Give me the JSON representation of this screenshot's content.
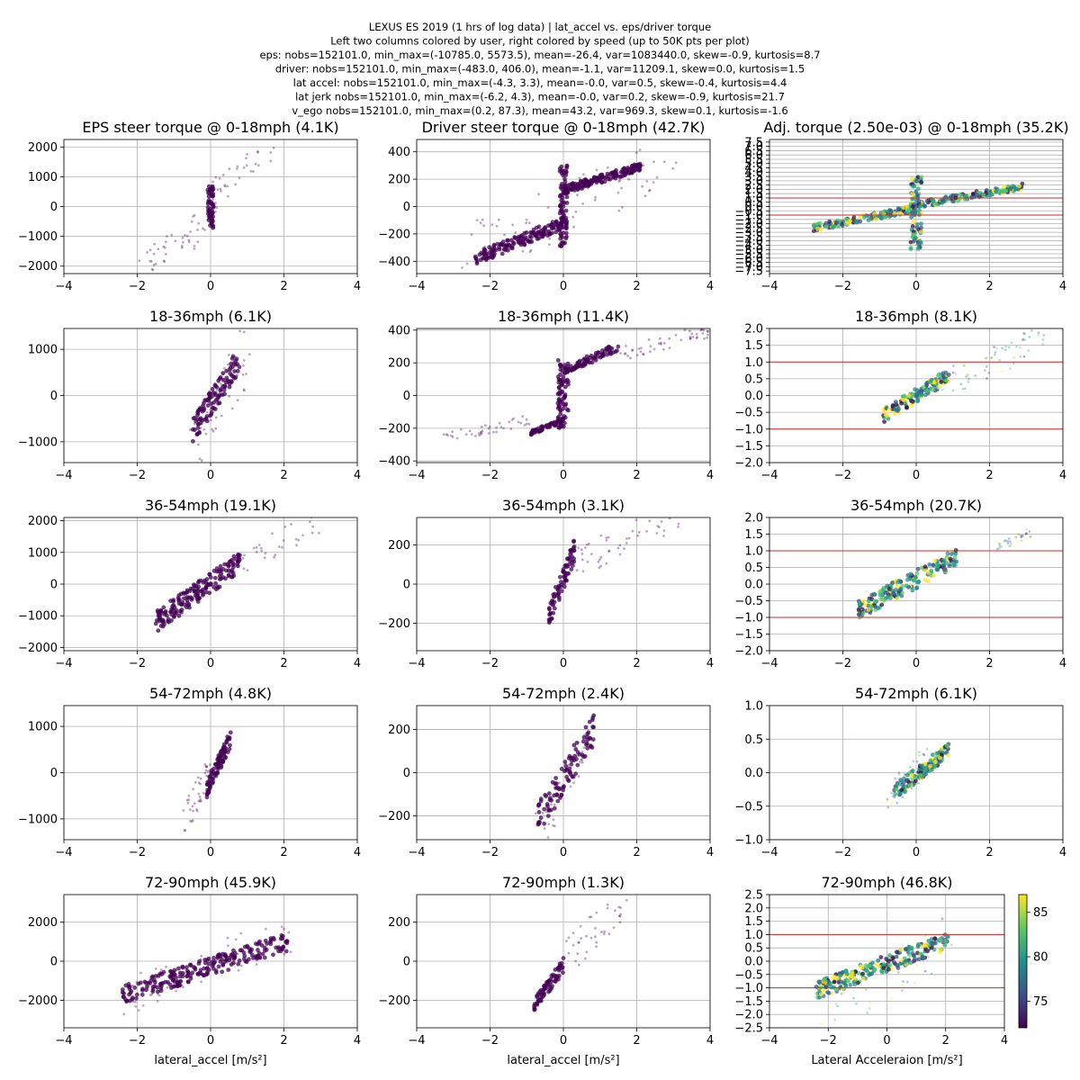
{
  "figure": {
    "suptitle_lines": [
      "LEXUS ES 2019 (1 hrs of log data) | lat_accel vs. eps/driver torque",
      "Left two columns colored by user, right colored by speed (up to 50K pts per plot)",
      "eps: nobs=152101.0, min_max=(-10785.0, 5573.5), mean=-26.4, var=1083440.0, skew=-0.9, kurtosis=8.7",
      "driver: nobs=152101.0, min_max=(-483.0, 406.0), mean=-1.1, var=11209.1, skew=0.0, kurtosis=1.5",
      "lat accel: nobs=152101.0, min_max=(-4.3, 3.3), mean=-0.0, var=0.5, skew=-0.4, kurtosis=4.4",
      "lat jerk nobs=152101.0, min_max=(-6.2, 4.3), mean=-0.0, var=0.2, skew=-0.9, kurtosis=21.7",
      "v_ego nobs=152101.0, min_max=(0.2, 87.3), mean=43.2, var=969.3, skew=0.1, kurtosis=-1.6"
    ],
    "colorbar": {
      "ticks": [
        75,
        80,
        85
      ],
      "range": [
        72,
        87
      ]
    },
    "colors": {
      "user": "#440154",
      "grid": "#b0b0b0",
      "limit_line": "#d62728"
    }
  },
  "chart_data": [
    {
      "type": "scatter",
      "title": "EPS steer torque @ 0-18mph (4.1K)",
      "xlim": [
        -4,
        4
      ],
      "ylim": [
        -2250,
        2250
      ],
      "xticks": [
        -4,
        -2,
        0,
        2,
        4
      ],
      "yticks": [
        -2000,
        -1000,
        0,
        1000,
        2000
      ],
      "clusters": [
        {
          "x": [
            -0.08,
            0.08
          ],
          "y": [
            -750,
            700
          ],
          "n": 60,
          "d": "dense"
        },
        {
          "x": [
            -2,
            0
          ],
          "y": [
            -2000,
            -400
          ],
          "n": 30,
          "d": "sparse"
        },
        {
          "x": [
            0,
            1.8
          ],
          "y": [
            400,
            2000
          ],
          "n": 30,
          "d": "sparse"
        },
        {
          "x": [
            -1,
            0.3
          ],
          "y": [
            -1700,
            300
          ],
          "n": 20,
          "d": "sparse"
        }
      ]
    },
    {
      "type": "scatter",
      "title": "Driver steer torque @ 0-18mph (42.7K)",
      "xlim": [
        -4,
        4
      ],
      "ylim": [
        -490,
        490
      ],
      "xticks": [
        -4,
        -2,
        0,
        2,
        4
      ],
      "yticks": [
        -400,
        -200,
        0,
        200,
        400
      ],
      "clusters": [
        {
          "x": [
            -2.4,
            0
          ],
          "y": [
            -380,
            -120
          ],
          "n": 160,
          "d": "dense"
        },
        {
          "x": [
            0,
            2.1
          ],
          "y": [
            120,
            290
          ],
          "n": 160,
          "d": "dense"
        },
        {
          "x": [
            -0.1,
            0.1
          ],
          "y": [
            -300,
            300
          ],
          "n": 80,
          "d": "dense"
        },
        {
          "x": [
            -2.8,
            3.2
          ],
          "y": [
            -350,
            350
          ],
          "n": 70,
          "d": "sparse"
        }
      ]
    },
    {
      "type": "scatter",
      "title": "Adj. torque (2.50e-03) @ 0-18mph (35.2K)",
      "xlim": [
        -4,
        4
      ],
      "ylim": [
        -7.8,
        7.8
      ],
      "xticks": [
        -4,
        -2,
        0,
        2,
        4
      ],
      "yticks": [
        -7.5,
        -7.0,
        -6.5,
        -6.0,
        -5.5,
        -5.0,
        -4.5,
        -4.0,
        -3.5,
        -3.0,
        -2.5,
        -2.0,
        -1.5,
        -1.0,
        -0.5,
        0.0,
        0.5,
        1.0,
        1.5,
        2.0,
        2.5,
        3.0,
        3.5,
        4.0,
        4.5,
        5.0,
        5.5,
        6.0,
        6.5,
        7.0,
        7.5
      ],
      "limit_lines": [
        -1,
        1
      ],
      "clusters": [
        {
          "x": [
            -2.8,
            0
          ],
          "y": [
            -2.5,
            -0.2
          ],
          "n": 150,
          "d": "dense"
        },
        {
          "x": [
            0,
            2.9
          ],
          "y": [
            0.2,
            2.3
          ],
          "n": 150,
          "d": "dense"
        },
        {
          "x": [
            -0.15,
            0.15
          ],
          "y": [
            -5,
            3.5
          ],
          "n": 80,
          "d": "dense"
        }
      ]
    },
    {
      "type": "scatter",
      "title": "18-36mph (6.1K)",
      "xlim": [
        -4,
        4
      ],
      "ylim": [
        -1450,
        1450
      ],
      "xticks": [
        -4,
        -2,
        0,
        2,
        4
      ],
      "yticks": [
        -1000,
        0,
        1000
      ],
      "clusters": [
        {
          "x": [
            -0.5,
            0.8
          ],
          "y": [
            -800,
            800
          ],
          "n": 110,
          "d": "dense"
        },
        {
          "x": [
            -0.6,
            1.1
          ],
          "y": [
            -1400,
            1100
          ],
          "n": 50,
          "d": "sparse"
        }
      ]
    },
    {
      "type": "scatter",
      "title": "18-36mph (11.4K)",
      "xlim": [
        -4,
        4
      ],
      "ylim": [
        -410,
        410
      ],
      "xticks": [
        -4,
        -2,
        0,
        2,
        4
      ],
      "yticks": [
        -400,
        -200,
        0,
        200,
        400
      ],
      "clusters": [
        {
          "x": [
            -0.9,
            0
          ],
          "y": [
            -230,
            -150
          ],
          "n": 60,
          "d": "dense"
        },
        {
          "x": [
            -0.15,
            0.15
          ],
          "y": [
            -200,
            220
          ],
          "n": 80,
          "d": "dense"
        },
        {
          "x": [
            0,
            1.5
          ],
          "y": [
            150,
            300
          ],
          "n": 80,
          "d": "dense"
        },
        {
          "x": [
            -3.3,
            -0.9
          ],
          "y": [
            -260,
            -150
          ],
          "n": 40,
          "d": "sparse"
        },
        {
          "x": [
            1.5,
            4
          ],
          "y": [
            250,
            400
          ],
          "n": 50,
          "d": "sparse"
        }
      ]
    },
    {
      "type": "scatter",
      "title": "18-36mph (8.1K)",
      "xlim": [
        -4,
        4
      ],
      "ylim": [
        -2,
        2
      ],
      "xticks": [
        -4,
        -2,
        0,
        2,
        4
      ],
      "yticks": [
        -2.0,
        -1.5,
        -1.0,
        -0.5,
        0.0,
        0.5,
        1.0,
        1.5,
        2.0
      ],
      "limit_lines": [
        -1,
        1
      ],
      "clusters": [
        {
          "x": [
            -0.9,
            0.9
          ],
          "y": [
            -0.6,
            0.6
          ],
          "n": 140,
          "d": "dense"
        },
        {
          "x": [
            0.5,
            3.5
          ],
          "y": [
            0.2,
            1.7
          ],
          "n": 60,
          "d": "sparse"
        }
      ]
    },
    {
      "type": "scatter",
      "title": "36-54mph (19.1K)",
      "xlim": [
        -4,
        4
      ],
      "ylim": [
        -2100,
        2100
      ],
      "xticks": [
        -4,
        -2,
        0,
        2,
        4
      ],
      "yticks": [
        -2000,
        -1000,
        0,
        1000,
        2000
      ],
      "clusters": [
        {
          "x": [
            -1.5,
            0.8
          ],
          "y": [
            -1200,
            700
          ],
          "n": 180,
          "d": "dense"
        },
        {
          "x": [
            0.6,
            3
          ],
          "y": [
            600,
            1950
          ],
          "n": 30,
          "d": "sparse"
        }
      ]
    },
    {
      "type": "scatter",
      "title": "36-54mph (3.1K)",
      "xlim": [
        -4,
        4
      ],
      "ylim": [
        -340,
        340
      ],
      "xticks": [
        -4,
        -2,
        0,
        2,
        4
      ],
      "yticks": [
        -200,
        0,
        200
      ],
      "clusters": [
        {
          "x": [
            -0.4,
            0.3
          ],
          "y": [
            -160,
            170
          ],
          "n": 80,
          "d": "dense"
        },
        {
          "x": [
            0.3,
            3.2
          ],
          "y": [
            100,
            370
          ],
          "n": 50,
          "d": "sparse"
        }
      ]
    },
    {
      "type": "scatter",
      "title": "36-54mph (20.7K)",
      "xlim": [
        -4,
        4
      ],
      "ylim": [
        -2,
        2
      ],
      "xticks": [
        -4,
        -2,
        0,
        2,
        4
      ],
      "yticks": [
        -2.0,
        -1.5,
        -1.0,
        -0.5,
        0.0,
        0.5,
        1.0,
        1.5,
        2.0
      ],
      "limit_lines": [
        -1,
        1
      ],
      "clusters": [
        {
          "x": [
            -1.6,
            1.1
          ],
          "y": [
            -0.8,
            0.8
          ],
          "n": 180,
          "d": "dense"
        },
        {
          "x": [
            2.2,
            3.2
          ],
          "y": [
            1.1,
            1.6
          ],
          "n": 30,
          "d": "sparse"
        }
      ]
    },
    {
      "type": "scatter",
      "title": "54-72mph (4.8K)",
      "xlim": [
        -4,
        4
      ],
      "ylim": [
        -1450,
        1450
      ],
      "xticks": [
        -4,
        -2,
        0,
        2,
        4
      ],
      "yticks": [
        -1000,
        0,
        1000
      ],
      "clusters": [
        {
          "x": [
            -0.1,
            0.55
          ],
          "y": [
            -350,
            750
          ],
          "n": 90,
          "d": "dense"
        },
        {
          "x": [
            -0.75,
            0
          ],
          "y": [
            -1100,
            100
          ],
          "n": 40,
          "d": "sparse"
        }
      ]
    },
    {
      "type": "scatter",
      "title": "54-72mph (2.4K)",
      "xlim": [
        -4,
        4
      ],
      "ylim": [
        -310,
        310
      ],
      "xticks": [
        -4,
        -2,
        0,
        2,
        4
      ],
      "yticks": [
        -200,
        0,
        200
      ],
      "clusters": [
        {
          "x": [
            -0.7,
            0.85
          ],
          "y": [
            -220,
            210
          ],
          "n": 100,
          "d": "dense"
        },
        {
          "x": [
            -0.8,
            0.6
          ],
          "y": [
            -300,
            100
          ],
          "n": 30,
          "d": "sparse"
        }
      ]
    },
    {
      "type": "scatter",
      "title": "54-72mph (6.1K)",
      "xlim": [
        -4,
        4
      ],
      "ylim": [
        -1,
        1
      ],
      "xticks": [
        -4,
        -2,
        0,
        2,
        4
      ],
      "yticks": [
        -1.0,
        -0.5,
        0.0,
        0.5,
        1.0
      ],
      "clusters": [
        {
          "x": [
            -0.6,
            0.9
          ],
          "y": [
            -0.3,
            0.35
          ],
          "n": 140,
          "d": "dense"
        },
        {
          "x": [
            -0.8,
            0.7
          ],
          "y": [
            -0.4,
            0.4
          ],
          "n": 40,
          "d": "sparse"
        }
      ]
    },
    {
      "type": "scatter",
      "title": "72-90mph (45.9K)",
      "xlim": [
        -4,
        4
      ],
      "ylim": [
        -3400,
        3400
      ],
      "xticks": [
        -4,
        -2,
        0,
        2,
        4
      ],
      "yticks": [
        -2000,
        0,
        2000
      ],
      "clusters": [
        {
          "x": [
            -2.4,
            2.1
          ],
          "y": [
            -1700,
            1000
          ],
          "n": 240,
          "d": "dense"
        },
        {
          "x": [
            -2.5,
            2.3
          ],
          "y": [
            -1900,
            1600
          ],
          "n": 60,
          "d": "sparse"
        }
      ]
    },
    {
      "type": "scatter",
      "title": "72-90mph (1.3K)",
      "xlim": [
        -4,
        4
      ],
      "ylim": [
        -340,
        340
      ],
      "xticks": [
        -4,
        -2,
        0,
        2,
        4
      ],
      "yticks": [
        -200,
        0,
        200
      ],
      "clusters": [
        {
          "x": [
            -0.8,
            0
          ],
          "y": [
            -230,
            -20
          ],
          "n": 70,
          "d": "dense"
        },
        {
          "x": [
            0,
            1.8
          ],
          "y": [
            0,
            330
          ],
          "n": 40,
          "d": "sparse"
        }
      ]
    },
    {
      "type": "scatter",
      "title": "72-90mph (46.8K)",
      "xlim": [
        -4,
        4
      ],
      "ylim": [
        -2.5,
        2.5
      ],
      "xticks": [
        -4,
        -2,
        0,
        2,
        4
      ],
      "yticks": [
        -2.5,
        -2.0,
        -1.5,
        -1.0,
        -0.5,
        0.0,
        0.5,
        1.0,
        1.5,
        2.0,
        2.5
      ],
      "limit_lines": [
        -1,
        1
      ],
      "clusters": [
        {
          "x": [
            -2.4,
            2.1
          ],
          "y": [
            -1.1,
            0.8
          ],
          "n": 240,
          "d": "dense"
        },
        {
          "x": [
            -2.5,
            2.3
          ],
          "y": [
            -2.3,
            1.0
          ],
          "n": 40,
          "d": "sparse"
        }
      ]
    }
  ],
  "xlabels": [
    "lateral_accel [m/s²]",
    "lateral_accel [m/s²]",
    "Lateral Acceleraion [m/s²]"
  ]
}
